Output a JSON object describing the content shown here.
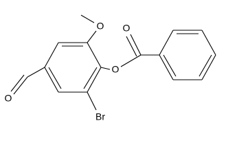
{
  "atoms": [
    {
      "label": "O"
    },
    {
      "label": "O"
    },
    {
      "label": "O"
    },
    {
      "label": "O"
    },
    {
      "label": "Br"
    }
  ]
}
